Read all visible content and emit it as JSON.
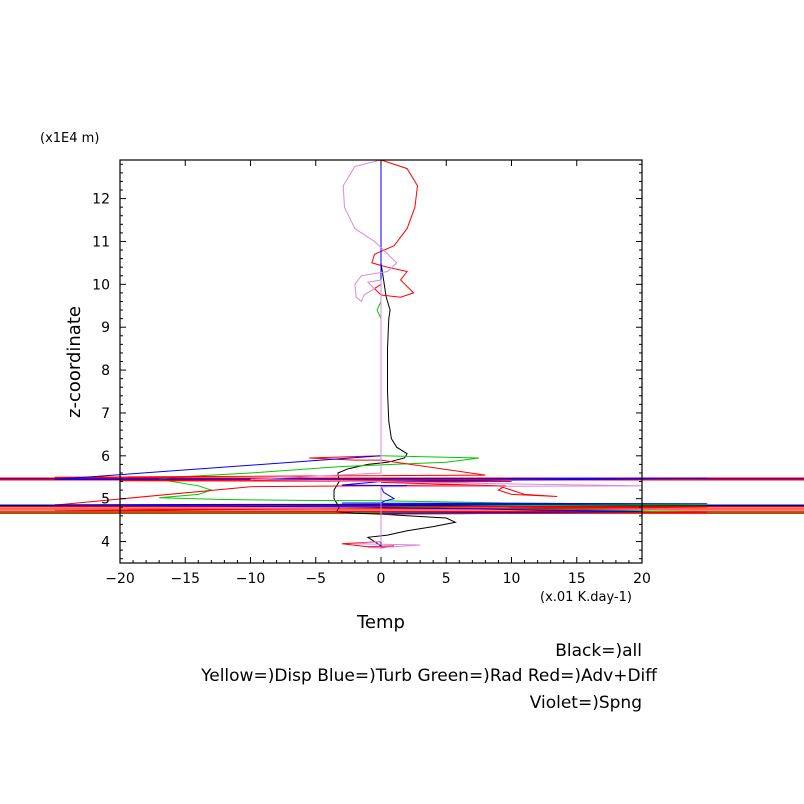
{
  "chart_data": {
    "type": "line",
    "xlabel": "Temp",
    "ylabel": "z-coordinate",
    "x_unit": "(x.01 K.day-1)",
    "y_unit": "(x1E4 m)",
    "xlim": [
      -20,
      20
    ],
    "ylim": [
      3.5,
      12.9
    ],
    "xticks": [
      -20,
      -15,
      -10,
      -5,
      0,
      5,
      10,
      15,
      20
    ],
    "yticks": [
      4,
      5,
      6,
      7,
      8,
      9,
      10,
      11,
      12
    ],
    "legend": [
      "Black=)all",
      "Yellow=)Disp Blue=)Turb Green=)Rad Red=)Adv+Diff",
      "Violet=)Spng"
    ],
    "series": [
      {
        "color": "#000000",
        "points": [
          [
            0,
            12.9
          ],
          [
            0,
            11.5
          ],
          [
            0,
            10.5
          ],
          [
            0.2,
            10.1
          ],
          [
            0.4,
            9.7
          ],
          [
            0.7,
            9.4
          ],
          [
            0.6,
            9.2
          ],
          [
            0.5,
            8.5
          ],
          [
            0.5,
            7.5
          ],
          [
            0.6,
            6.8
          ],
          [
            0.8,
            6.4
          ],
          [
            1.2,
            6.2
          ],
          [
            2,
            6.05
          ],
          [
            1.8,
            5.95
          ],
          [
            0.5,
            5.85
          ],
          [
            -1,
            5.8
          ],
          [
            -2.5,
            5.7
          ],
          [
            -3.3,
            5.6
          ],
          [
            -3.2,
            5.4
          ],
          [
            -3.6,
            5.2
          ],
          [
            -3.6,
            5.0
          ],
          [
            -3.2,
            4.8
          ],
          [
            -3.4,
            4.7
          ],
          [
            -2,
            4.66
          ],
          [
            0,
            4.64
          ],
          [
            2,
            4.6
          ],
          [
            5,
            4.55
          ],
          [
            5.7,
            4.45
          ],
          [
            4,
            4.35
          ],
          [
            2,
            4.25
          ],
          [
            0.5,
            4.15
          ],
          [
            -1,
            4.1
          ],
          [
            -0.5,
            4.0
          ],
          [
            0,
            3.9
          ]
        ]
      },
      {
        "color": "#00cc00",
        "points": [
          [
            0,
            12.9
          ],
          [
            0,
            10.2
          ],
          [
            0,
            9.6
          ],
          [
            -0.3,
            9.4
          ],
          [
            0,
            9.2
          ],
          [
            0,
            7.0
          ],
          [
            0,
            6.3
          ],
          [
            0,
            6.0
          ],
          [
            7.5,
            5.95
          ],
          [
            5,
            5.85
          ],
          [
            -3,
            5.75
          ],
          [
            -10,
            5.6
          ],
          [
            -16,
            5.5
          ],
          [
            -17,
            5.45
          ],
          [
            -14,
            5.3
          ],
          [
            -13,
            5.2
          ],
          [
            -14,
            5.1
          ],
          [
            -17,
            5.02
          ],
          [
            -12,
            4.98
          ],
          [
            -6,
            4.96
          ],
          [
            0,
            4.95
          ],
          [
            10,
            4.9
          ],
          [
            25,
            4.86
          ],
          [
            10,
            4.84
          ],
          [
            0,
            4.8
          ],
          [
            20,
            4.72
          ],
          [
            25,
            4.68
          ],
          [
            0,
            4.64
          ],
          [
            0,
            4.2
          ],
          [
            0,
            3.85
          ]
        ]
      },
      {
        "color": "#ff0000",
        "points": [
          [
            0,
            12.9
          ],
          [
            2,
            12.7
          ],
          [
            2.8,
            12.3
          ],
          [
            2.6,
            11.8
          ],
          [
            2,
            11.3
          ],
          [
            1,
            10.9
          ],
          [
            -0.5,
            10.7
          ],
          [
            -0.7,
            10.5
          ],
          [
            0.5,
            10.4
          ],
          [
            2,
            10.3
          ],
          [
            1.5,
            10.1
          ],
          [
            2.5,
            9.8
          ],
          [
            1.5,
            9.7
          ],
          [
            0,
            9.75
          ],
          [
            -0.5,
            9.9
          ],
          [
            0,
            10.0
          ],
          [
            0,
            9.6
          ],
          [
            0,
            6.0
          ],
          [
            -5.5,
            5.95
          ],
          [
            -2,
            5.9
          ],
          [
            0,
            5.9
          ],
          [
            8,
            5.55
          ],
          [
            -25,
            5.5
          ],
          [
            25,
            5.45
          ],
          [
            -20,
            5.42
          ],
          [
            10,
            5.4
          ],
          [
            0,
            5.38
          ],
          [
            9,
            5.3
          ],
          [
            11,
            5.1
          ],
          [
            13.5,
            5.05
          ],
          [
            10,
            5.1
          ],
          [
            9,
            5.2
          ],
          [
            9.5,
            5.3
          ],
          [
            5,
            5.32
          ],
          [
            0,
            5.3
          ],
          [
            -10,
            5.28
          ],
          [
            -25,
            4.85
          ],
          [
            25,
            4.8
          ],
          [
            0,
            4.77
          ],
          [
            -25,
            4.72
          ],
          [
            25,
            4.68
          ],
          [
            0,
            4.64
          ],
          [
            0,
            4.0
          ],
          [
            -3,
            3.95
          ],
          [
            -1,
            3.88
          ],
          [
            1,
            3.9
          ],
          [
            0,
            3.85
          ]
        ]
      },
      {
        "color": "#0000ff",
        "points": [
          [
            0,
            12.9
          ],
          [
            0,
            6.0
          ],
          [
            -25,
            5.45
          ],
          [
            25,
            5.48
          ],
          [
            0,
            5.4
          ],
          [
            -3,
            5.32
          ],
          [
            2,
            5.3
          ],
          [
            0,
            5.28
          ],
          [
            0.2,
            5.15
          ],
          [
            1,
            5.0
          ],
          [
            0.3,
            4.95
          ],
          [
            0,
            4.9
          ],
          [
            -3,
            4.9
          ],
          [
            25,
            4.88
          ],
          [
            -25,
            4.86
          ],
          [
            -1,
            4.8
          ],
          [
            20,
            4.7
          ],
          [
            0,
            4.66
          ],
          [
            0,
            3.85
          ]
        ]
      },
      {
        "color": "#dd88dd",
        "points": [
          [
            0,
            12.9
          ],
          [
            -2,
            12.75
          ],
          [
            -2.9,
            12.3
          ],
          [
            -2.8,
            11.8
          ],
          [
            -2,
            11.3
          ],
          [
            -0.5,
            11.0
          ],
          [
            0.2,
            10.8
          ],
          [
            1.2,
            10.5
          ],
          [
            0.5,
            10.3
          ],
          [
            -1.5,
            10.2
          ],
          [
            -2,
            10.0
          ],
          [
            -1.9,
            9.7
          ],
          [
            -1.5,
            9.6
          ],
          [
            -1.3,
            9.75
          ],
          [
            -0.5,
            9.9
          ],
          [
            -1,
            10.05
          ],
          [
            0,
            10.1
          ],
          [
            0,
            9.5
          ],
          [
            0,
            5.6
          ],
          [
            -10,
            5.45
          ],
          [
            -3,
            5.42
          ],
          [
            0,
            5.4
          ],
          [
            9,
            5.35
          ],
          [
            20,
            5.3
          ],
          [
            0,
            5.28
          ],
          [
            0,
            4.0
          ],
          [
            -2,
            3.95
          ],
          [
            3,
            3.92
          ],
          [
            1,
            3.88
          ],
          [
            -1,
            3.86
          ],
          [
            0,
            3.85
          ]
        ]
      }
    ],
    "horizontal_lines": [
      {
        "y": 5.48,
        "color": "#ff0000"
      },
      {
        "y": 5.46,
        "color": "#0000ff"
      },
      {
        "y": 5.44,
        "color": "#ff0000"
      },
      {
        "y": 4.85,
        "color": "#0000ff"
      },
      {
        "y": 4.83,
        "color": "#000000"
      },
      {
        "y": 4.81,
        "color": "#ff0000"
      },
      {
        "y": 4.76,
        "color": "#ff0000"
      },
      {
        "y": 4.71,
        "color": "#ff0000"
      },
      {
        "y": 4.68,
        "color": "#00cc00"
      },
      {
        "y": 4.66,
        "color": "#ff0000"
      }
    ]
  }
}
